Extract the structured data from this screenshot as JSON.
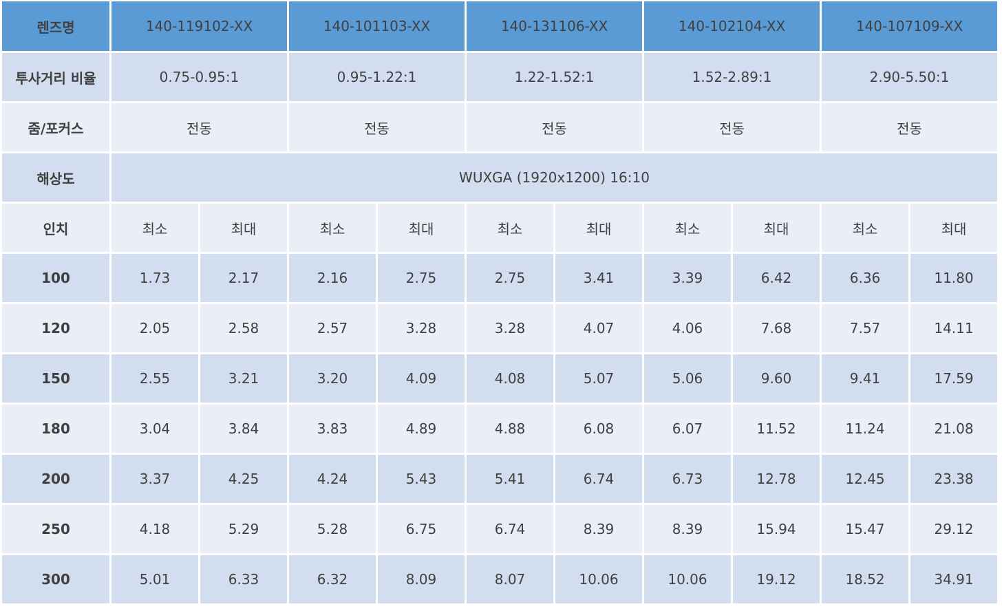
{
  "header": {
    "label": "렌즈명",
    "lenses": [
      "140-119102-XX",
      "140-101103-XX",
      "140-131106-XX",
      "140-102104-XX",
      "140-107109-XX"
    ]
  },
  "throw_ratio": {
    "label": "투사거리 비율",
    "values": [
      "0.75-0.95:1",
      "0.95-1.22:1",
      "1.22-1.52:1",
      "1.52-2.89:1",
      "2.90-5.50:1"
    ]
  },
  "zoom_focus": {
    "label": "줌/포커스",
    "values": [
      "전동",
      "전동",
      "전동",
      "전동",
      "전동"
    ]
  },
  "resolution": {
    "label": "해상도",
    "value": "WUXGA (1920x1200) 16:10"
  },
  "inch": {
    "label": "인치",
    "min_label": "최소",
    "max_label": "최대"
  },
  "rows": [
    {
      "inch": "100",
      "values": [
        "1.73",
        "2.17",
        "2.16",
        "2.75",
        "2.75",
        "3.41",
        "3.39",
        "6.42",
        "6.36",
        "11.80"
      ]
    },
    {
      "inch": "120",
      "values": [
        "2.05",
        "2.58",
        "2.57",
        "3.28",
        "3.28",
        "4.07",
        "4.06",
        "7.68",
        "7.57",
        "14.11"
      ]
    },
    {
      "inch": "150",
      "values": [
        "2.55",
        "3.21",
        "3.20",
        "4.09",
        "4.08",
        "5.07",
        "5.06",
        "9.60",
        "9.41",
        "17.59"
      ]
    },
    {
      "inch": "180",
      "values": [
        "3.04",
        "3.84",
        "3.83",
        "4.89",
        "4.88",
        "6.08",
        "6.07",
        "11.52",
        "11.24",
        "21.08"
      ]
    },
    {
      "inch": "200",
      "values": [
        "3.37",
        "4.25",
        "4.24",
        "5.43",
        "5.41",
        "6.74",
        "6.73",
        "12.78",
        "12.45",
        "23.38"
      ]
    },
    {
      "inch": "250",
      "values": [
        "4.18",
        "5.29",
        "5.28",
        "6.75",
        "6.74",
        "8.39",
        "8.39",
        "15.94",
        "15.47",
        "29.12"
      ]
    },
    {
      "inch": "300",
      "values": [
        "5.01",
        "6.33",
        "6.32",
        "8.09",
        "8.07",
        "10.06",
        "10.06",
        "19.12",
        "18.52",
        "34.91"
      ]
    }
  ]
}
